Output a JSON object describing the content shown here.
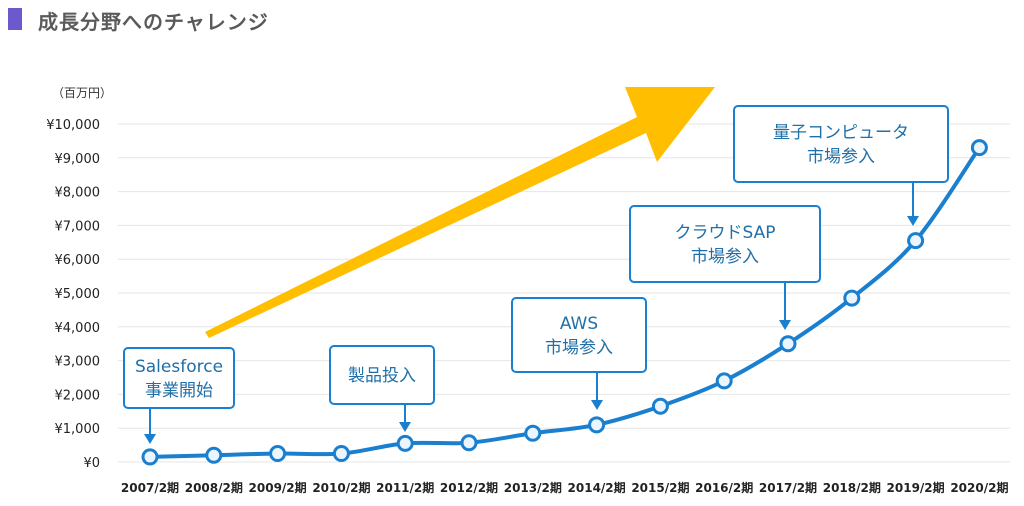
{
  "header": {
    "title": "成長分野へのチャレンジ"
  },
  "chart_data": {
    "type": "line",
    "unit_label": "（百万円）",
    "x": [
      "2007/2期",
      "2008/2期",
      "2009/2期",
      "2010/2期",
      "2011/2期",
      "2012/2期",
      "2013/2期",
      "2014/2期",
      "2015/2期",
      "2016/2期",
      "2017/2期",
      "2018/2期",
      "2019/2期",
      "2020/2期"
    ],
    "series": [
      {
        "values": [
          150,
          200,
          250,
          250,
          550,
          570,
          850,
          1100,
          1650,
          2400,
          3500,
          4850,
          6550,
          9300
        ]
      }
    ],
    "yticks": [
      "¥0",
      "¥1,000",
      "¥2,000",
      "¥3,000",
      "¥4,000",
      "¥5,000",
      "¥6,000",
      "¥7,000",
      "¥8,000",
      "¥9,000",
      "¥10,000"
    ],
    "ylim": [
      0,
      10000
    ],
    "grid": true,
    "annotations": [
      {
        "lines": [
          "Salesforce",
          "事業開始"
        ],
        "x_index": 0
      },
      {
        "lines": [
          "製品投入"
        ],
        "x_index": 4
      },
      {
        "lines": [
          "AWS",
          "市場参入"
        ],
        "x_index": 7
      },
      {
        "lines": [
          "クラウドSAP",
          "市場参入"
        ],
        "x_index": 10
      },
      {
        "lines": [
          "量子コンピュータ",
          "市場参入"
        ],
        "x_index": 12
      }
    ],
    "colors": {
      "line": "#1a7fcf",
      "arrow": "#ffbe00",
      "callout_border": "#1a7fcf",
      "grid": "#e6e6e6"
    }
  }
}
